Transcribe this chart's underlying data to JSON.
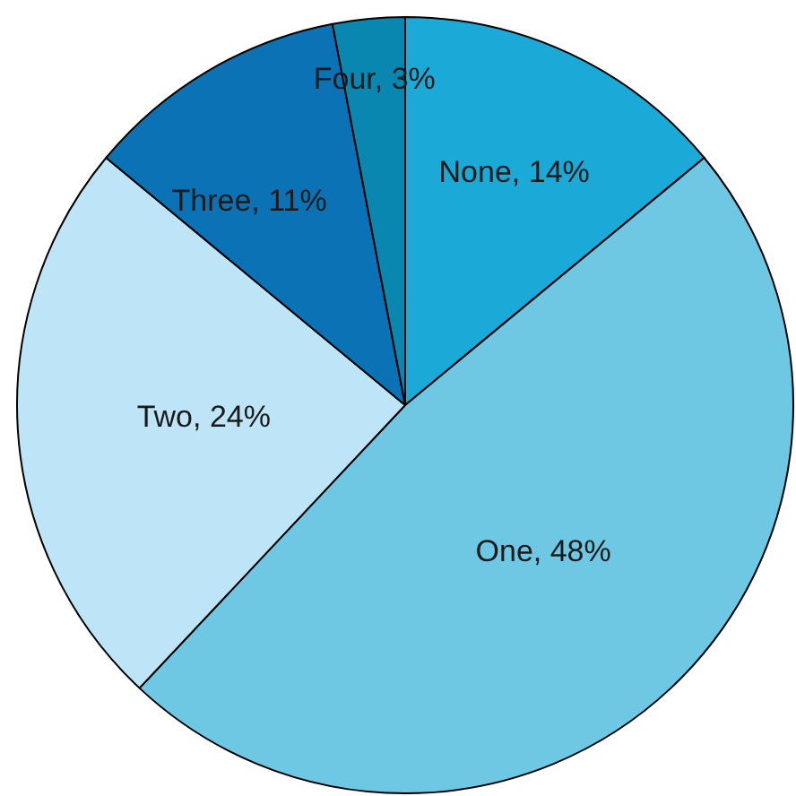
{
  "chart_data": {
    "type": "pie",
    "categories": [
      "None",
      "One",
      "Two",
      "Three",
      "Four"
    ],
    "values": [
      14,
      48,
      24,
      11,
      3
    ],
    "colors": [
      "#1ba9d8",
      "#6fc8e3",
      "#bde5f7",
      "#0b72b5",
      "#0a87b0"
    ],
    "value_labels": [
      "14%",
      "48%",
      "24%",
      "11%",
      "3%"
    ],
    "legend": false
  }
}
